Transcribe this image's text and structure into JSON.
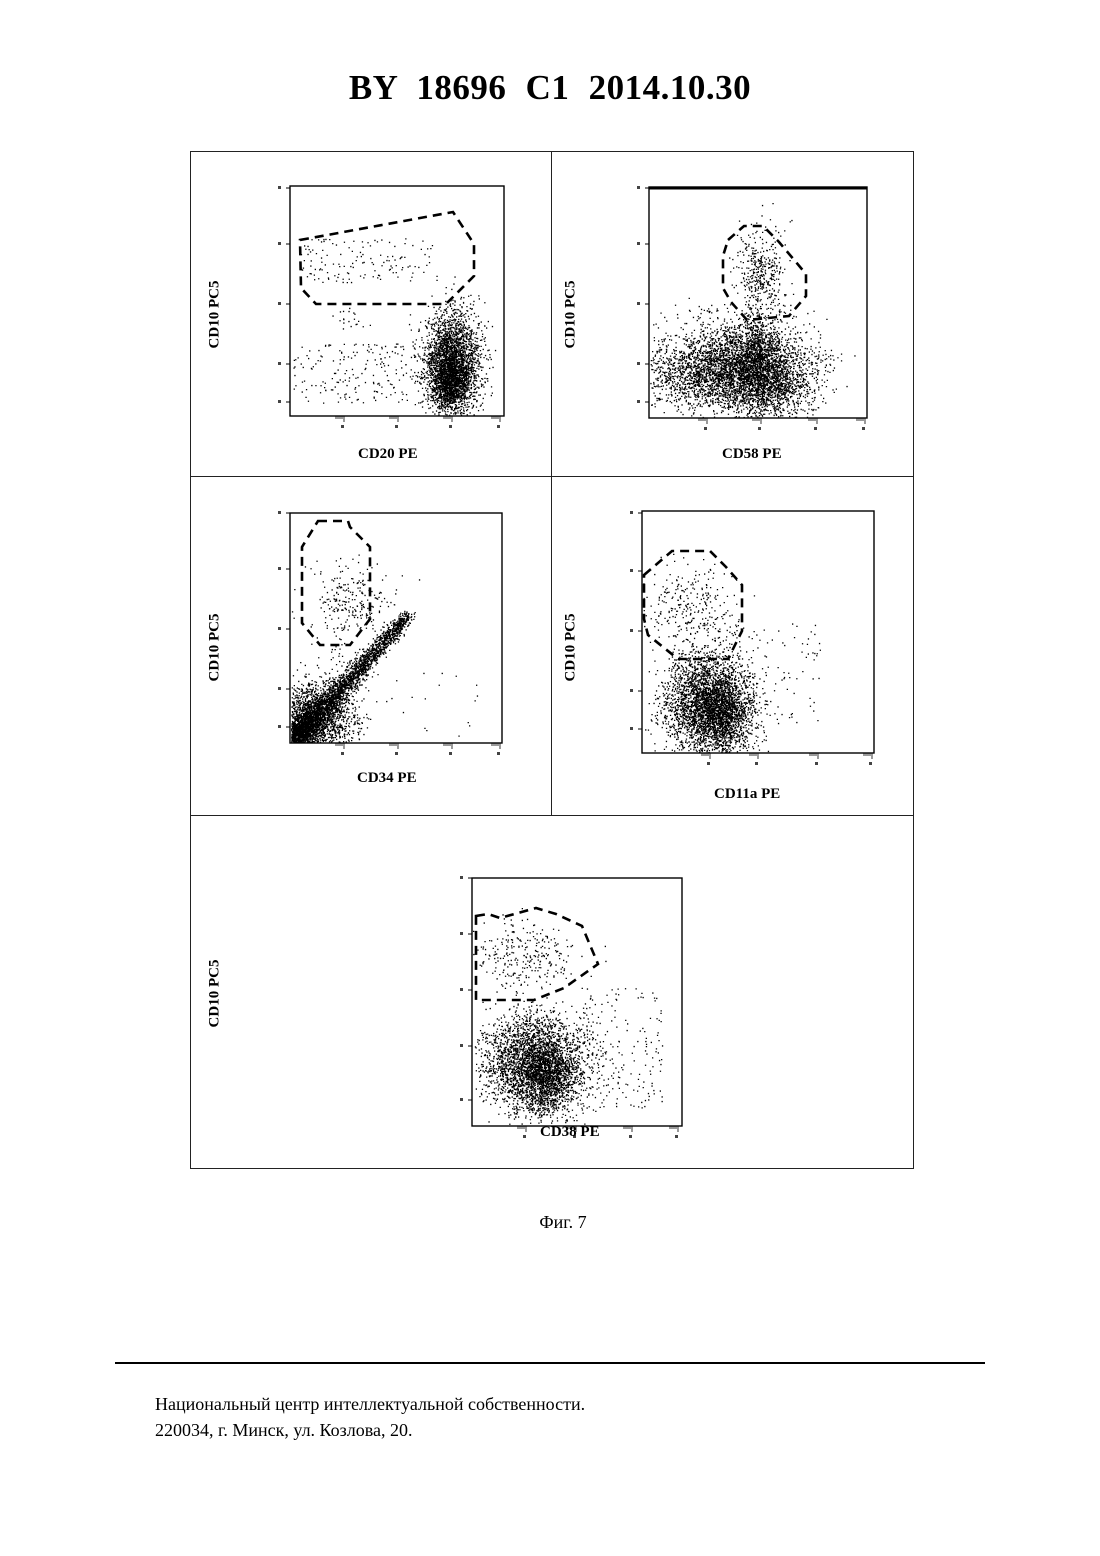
{
  "header": "BY  18696  C1  2014.10.30",
  "panels": [
    {
      "ylabel": "CD10 PC5",
      "xlabel": "CD20 PE"
    },
    {
      "ylabel": "CD10 PC5",
      "xlabel": "CD58 PE"
    },
    {
      "ylabel": "CD10 PC5",
      "xlabel": "CD34 PE"
    },
    {
      "ylabel": "CD10 PC5",
      "xlabel": "CD11a PE"
    },
    {
      "ylabel": "CD10 PC5",
      "xlabel": "CD38 PE"
    }
  ],
  "caption": "Фиг. 7",
  "footer": {
    "line1": "Национальный центр интеллектуальной собственности.",
    "line2": "220034, г. Минск, ул. Козлова, 20."
  }
}
